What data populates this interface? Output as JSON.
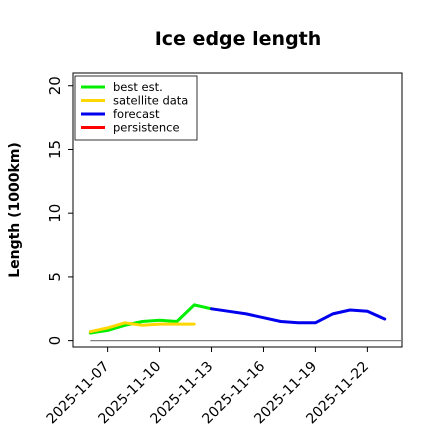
{
  "chart_data": {
    "type": "line",
    "title": "Ice edge length",
    "xlabel": "",
    "ylabel": "Length (1000km)",
    "ylim": [
      -0.5,
      21
    ],
    "xlim": [
      "2025-11-05",
      "2025-11-24"
    ],
    "yticks": [
      "0",
      "5",
      "10",
      "15",
      "20"
    ],
    "xticks": [
      {
        "date": "2025-11-07",
        "label": "2025-11-07",
        "color": "#000000"
      },
      {
        "date": "2025-11-10",
        "label": "2025-11-10",
        "color": "#000000"
      },
      {
        "date": "2025-11-13",
        "label": "2025-11-13",
        "color": "#228b22"
      },
      {
        "date": "2025-11-16",
        "label": "2025-11-16",
        "color": "#000000"
      },
      {
        "date": "2025-11-19",
        "label": "2025-11-19",
        "color": "#000000"
      },
      {
        "date": "2025-11-22",
        "label": "2025-11-22",
        "color": "#000000"
      }
    ],
    "grid": false,
    "legend_position": "top-left",
    "reference_line": {
      "y": 0,
      "from": "2025-11-06",
      "to": "2025-11-24",
      "color": "#808080"
    },
    "series": [
      {
        "name": "best est.",
        "color": "#00ee00",
        "points": [
          [
            "2025-11-06",
            0.6
          ],
          [
            "2025-11-07",
            0.8
          ],
          [
            "2025-11-08",
            1.2
          ],
          [
            "2025-11-09",
            1.5
          ],
          [
            "2025-11-10",
            1.6
          ],
          [
            "2025-11-11",
            1.5
          ],
          [
            "2025-11-12",
            2.8
          ],
          [
            "2025-11-13",
            2.5
          ]
        ]
      },
      {
        "name": "satellite data",
        "color": "#ffd700",
        "points": [
          [
            "2025-11-06",
            0.7
          ],
          [
            "2025-11-07",
            1.0
          ],
          [
            "2025-11-08",
            1.4
          ],
          [
            "2025-11-09",
            1.2
          ],
          [
            "2025-11-10",
            1.3
          ],
          [
            "2025-11-11",
            1.3
          ],
          [
            "2025-11-12",
            1.3
          ]
        ]
      },
      {
        "name": "forecast",
        "color": "#0000ee",
        "points": [
          [
            "2025-11-13",
            2.5
          ],
          [
            "2025-11-14",
            2.3
          ],
          [
            "2025-11-15",
            2.1
          ],
          [
            "2025-11-16",
            1.8
          ],
          [
            "2025-11-17",
            1.5
          ],
          [
            "2025-11-18",
            1.4
          ],
          [
            "2025-11-19",
            1.4
          ],
          [
            "2025-11-20",
            2.1
          ],
          [
            "2025-11-21",
            2.4
          ],
          [
            "2025-11-22",
            2.3
          ],
          [
            "2025-11-23",
            1.7
          ]
        ]
      },
      {
        "name": "persistence",
        "color": "#ff0000",
        "points": []
      }
    ]
  }
}
